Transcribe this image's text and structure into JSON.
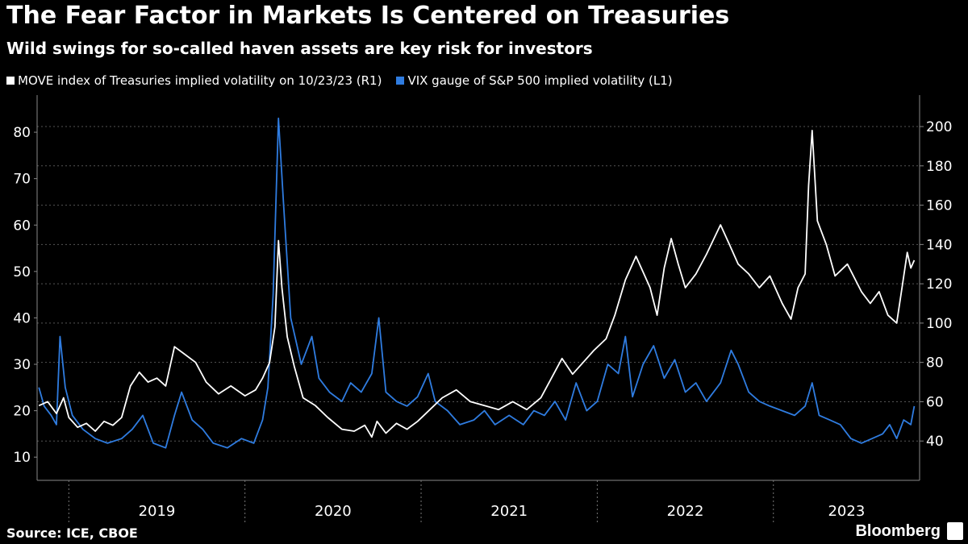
{
  "header": {
    "title": "The Fear Factor in Markets Is Centered on Treasuries",
    "subtitle": "Wild swings for so-called haven assets are key risk for investors"
  },
  "legend": {
    "items": [
      {
        "label": "MOVE index of Treasuries implied volatility on 10/23/23 (R1)",
        "color": "#ffffff"
      },
      {
        "label": "VIX gauge of S&P 500 implied volatility (L1)",
        "color": "#2f7ce0"
      }
    ]
  },
  "footer": {
    "source": "Source: ICE, CBOE",
    "brand": "Bloomberg"
  },
  "chart_data": {
    "type": "line",
    "x_labels": [
      "2019",
      "2020",
      "2021",
      "2022",
      "2023"
    ],
    "x_start": 2018.82,
    "x_end": 2023.83,
    "left_axis": {
      "ticks": [
        10,
        20,
        30,
        40,
        50,
        60,
        70,
        80
      ],
      "ylim": [
        5,
        88
      ]
    },
    "right_axis": {
      "ticks": [
        40,
        60,
        80,
        100,
        120,
        140,
        160,
        180,
        200
      ],
      "ylim": [
        20,
        216
      ]
    },
    "grid": true,
    "series": [
      {
        "name": "MOVE index of Treasuries implied volatility on 10/23/23 (R1)",
        "axis": "right",
        "color": "#ffffff",
        "points": [
          [
            2018.83,
            58
          ],
          [
            2018.88,
            60
          ],
          [
            2018.93,
            54
          ],
          [
            2018.97,
            62
          ],
          [
            2019.0,
            52
          ],
          [
            2019.05,
            47
          ],
          [
            2019.1,
            49
          ],
          [
            2019.15,
            45
          ],
          [
            2019.2,
            50
          ],
          [
            2019.25,
            48
          ],
          [
            2019.3,
            52
          ],
          [
            2019.35,
            68
          ],
          [
            2019.4,
            75
          ],
          [
            2019.45,
            70
          ],
          [
            2019.5,
            72
          ],
          [
            2019.55,
            68
          ],
          [
            2019.6,
            88
          ],
          [
            2019.66,
            84
          ],
          [
            2019.72,
            80
          ],
          [
            2019.78,
            70
          ],
          [
            2019.85,
            64
          ],
          [
            2019.92,
            68
          ],
          [
            2020.0,
            63
          ],
          [
            2020.06,
            66
          ],
          [
            2020.1,
            72
          ],
          [
            2020.14,
            80
          ],
          [
            2020.17,
            98
          ],
          [
            2020.19,
            142
          ],
          [
            2020.21,
            118
          ],
          [
            2020.24,
            93
          ],
          [
            2020.28,
            78
          ],
          [
            2020.33,
            62
          ],
          [
            2020.4,
            58
          ],
          [
            2020.47,
            52
          ],
          [
            2020.55,
            46
          ],
          [
            2020.62,
            45
          ],
          [
            2020.68,
            48
          ],
          [
            2020.72,
            42
          ],
          [
            2020.75,
            50
          ],
          [
            2020.8,
            44
          ],
          [
            2020.86,
            49
          ],
          [
            2020.92,
            46
          ],
          [
            2020.98,
            50
          ],
          [
            2021.05,
            56
          ],
          [
            2021.12,
            62
          ],
          [
            2021.2,
            66
          ],
          [
            2021.28,
            60
          ],
          [
            2021.36,
            58
          ],
          [
            2021.44,
            56
          ],
          [
            2021.52,
            60
          ],
          [
            2021.6,
            56
          ],
          [
            2021.68,
            62
          ],
          [
            2021.74,
            72
          ],
          [
            2021.8,
            82
          ],
          [
            2021.86,
            74
          ],
          [
            2021.92,
            80
          ],
          [
            2021.98,
            86
          ],
          [
            2022.05,
            92
          ],
          [
            2022.1,
            104
          ],
          [
            2022.16,
            122
          ],
          [
            2022.22,
            134
          ],
          [
            2022.26,
            126
          ],
          [
            2022.3,
            118
          ],
          [
            2022.34,
            104
          ],
          [
            2022.38,
            128
          ],
          [
            2022.42,
            143
          ],
          [
            2022.46,
            130
          ],
          [
            2022.5,
            118
          ],
          [
            2022.56,
            125
          ],
          [
            2022.62,
            135
          ],
          [
            2022.7,
            150
          ],
          [
            2022.75,
            140
          ],
          [
            2022.8,
            130
          ],
          [
            2022.86,
            125
          ],
          [
            2022.92,
            118
          ],
          [
            2022.98,
            124
          ],
          [
            2023.05,
            110
          ],
          [
            2023.1,
            102
          ],
          [
            2023.14,
            118
          ],
          [
            2023.18,
            125
          ],
          [
            2023.2,
            170
          ],
          [
            2023.22,
            198
          ],
          [
            2023.25,
            152
          ],
          [
            2023.3,
            140
          ],
          [
            2023.35,
            124
          ],
          [
            2023.42,
            130
          ],
          [
            2023.5,
            116
          ],
          [
            2023.55,
            110
          ],
          [
            2023.6,
            116
          ],
          [
            2023.65,
            104
          ],
          [
            2023.7,
            100
          ],
          [
            2023.73,
            118
          ],
          [
            2023.76,
            136
          ],
          [
            2023.78,
            128
          ],
          [
            2023.8,
            132
          ]
        ]
      },
      {
        "name": "VIX gauge of S&P 500 implied volatility (L1)",
        "axis": "left",
        "color": "#2f7ce0",
        "points": [
          [
            2018.83,
            25
          ],
          [
            2018.86,
            21
          ],
          [
            2018.9,
            19
          ],
          [
            2018.93,
            17
          ],
          [
            2018.95,
            36
          ],
          [
            2018.98,
            25
          ],
          [
            2019.02,
            19
          ],
          [
            2019.08,
            16
          ],
          [
            2019.15,
            14
          ],
          [
            2019.22,
            13
          ],
          [
            2019.3,
            14
          ],
          [
            2019.36,
            16
          ],
          [
            2019.42,
            19
          ],
          [
            2019.48,
            13
          ],
          [
            2019.55,
            12
          ],
          [
            2019.6,
            19
          ],
          [
            2019.64,
            24
          ],
          [
            2019.7,
            18
          ],
          [
            2019.76,
            16
          ],
          [
            2019.82,
            13
          ],
          [
            2019.9,
            12
          ],
          [
            2019.98,
            14
          ],
          [
            2020.05,
            13
          ],
          [
            2020.1,
            18
          ],
          [
            2020.13,
            25
          ],
          [
            2020.16,
            45
          ],
          [
            2020.19,
            83
          ],
          [
            2020.22,
            64
          ],
          [
            2020.26,
            40
          ],
          [
            2020.32,
            30
          ],
          [
            2020.38,
            36
          ],
          [
            2020.42,
            27
          ],
          [
            2020.48,
            24
          ],
          [
            2020.55,
            22
          ],
          [
            2020.6,
            26
          ],
          [
            2020.66,
            24
          ],
          [
            2020.72,
            28
          ],
          [
            2020.76,
            40
          ],
          [
            2020.8,
            24
          ],
          [
            2020.86,
            22
          ],
          [
            2020.92,
            21
          ],
          [
            2020.98,
            23
          ],
          [
            2021.04,
            28
          ],
          [
            2021.08,
            22
          ],
          [
            2021.15,
            20
          ],
          [
            2021.22,
            17
          ],
          [
            2021.3,
            18
          ],
          [
            2021.36,
            20
          ],
          [
            2021.42,
            17
          ],
          [
            2021.5,
            19
          ],
          [
            2021.58,
            17
          ],
          [
            2021.64,
            20
          ],
          [
            2021.7,
            19
          ],
          [
            2021.76,
            22
          ],
          [
            2021.82,
            18
          ],
          [
            2021.88,
            26
          ],
          [
            2021.94,
            20
          ],
          [
            2022.0,
            22
          ],
          [
            2022.06,
            30
          ],
          [
            2022.12,
            28
          ],
          [
            2022.16,
            36
          ],
          [
            2022.2,
            23
          ],
          [
            2022.26,
            30
          ],
          [
            2022.32,
            34
          ],
          [
            2022.38,
            27
          ],
          [
            2022.44,
            31
          ],
          [
            2022.5,
            24
          ],
          [
            2022.56,
            26
          ],
          [
            2022.62,
            22
          ],
          [
            2022.7,
            26
          ],
          [
            2022.76,
            33
          ],
          [
            2022.8,
            30
          ],
          [
            2022.86,
            24
          ],
          [
            2022.92,
            22
          ],
          [
            2022.98,
            21
          ],
          [
            2023.05,
            20
          ],
          [
            2023.12,
            19
          ],
          [
            2023.18,
            21
          ],
          [
            2023.22,
            26
          ],
          [
            2023.26,
            19
          ],
          [
            2023.32,
            18
          ],
          [
            2023.38,
            17
          ],
          [
            2023.44,
            14
          ],
          [
            2023.5,
            13
          ],
          [
            2023.56,
            14
          ],
          [
            2023.62,
            15
          ],
          [
            2023.66,
            17
          ],
          [
            2023.7,
            14
          ],
          [
            2023.74,
            18
          ],
          [
            2023.78,
            17
          ],
          [
            2023.8,
            21
          ]
        ]
      }
    ]
  }
}
